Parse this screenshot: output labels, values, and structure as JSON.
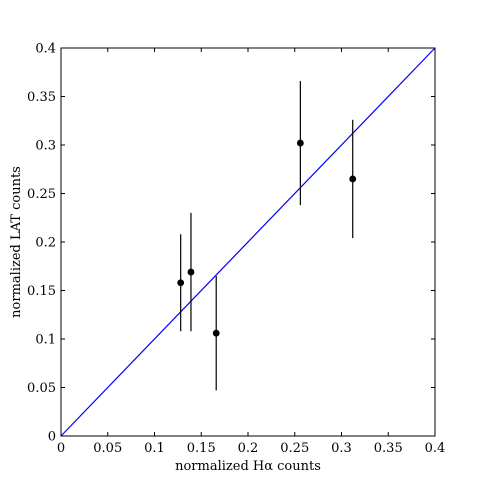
{
  "chart_data": {
    "type": "scatter",
    "title": "",
    "xlabel": "normalized Hα counts",
    "ylabel": "normalized LAT counts",
    "xlim": [
      0,
      0.4
    ],
    "ylim": [
      0,
      0.4
    ],
    "xticks": [
      "0",
      "0.05",
      "0.1",
      "0.15",
      "0.2",
      "0.25",
      "0.3",
      "0.35",
      "0.4"
    ],
    "yticks": [
      "0",
      "0.05",
      "0.1",
      "0.15",
      "0.2",
      "0.25",
      "0.3",
      "0.35",
      "0.4"
    ],
    "grid": false,
    "series": [
      {
        "kind": "points-with-error-bars",
        "color": "#000000",
        "points": [
          {
            "x": 0.128,
            "y": 0.158,
            "y_low": 0.108,
            "y_high": 0.208
          },
          {
            "x": 0.139,
            "y": 0.169,
            "y_low": 0.108,
            "y_high": 0.23
          },
          {
            "x": 0.166,
            "y": 0.106,
            "y_low": 0.047,
            "y_high": 0.165
          },
          {
            "x": 0.256,
            "y": 0.302,
            "y_low": 0.238,
            "y_high": 0.366
          },
          {
            "x": 0.312,
            "y": 0.265,
            "y_low": 0.204,
            "y_high": 0.326
          }
        ]
      },
      {
        "kind": "line",
        "color": "#0000ff",
        "x": [
          0,
          0.4
        ],
        "y": [
          0,
          0.4
        ]
      }
    ]
  }
}
